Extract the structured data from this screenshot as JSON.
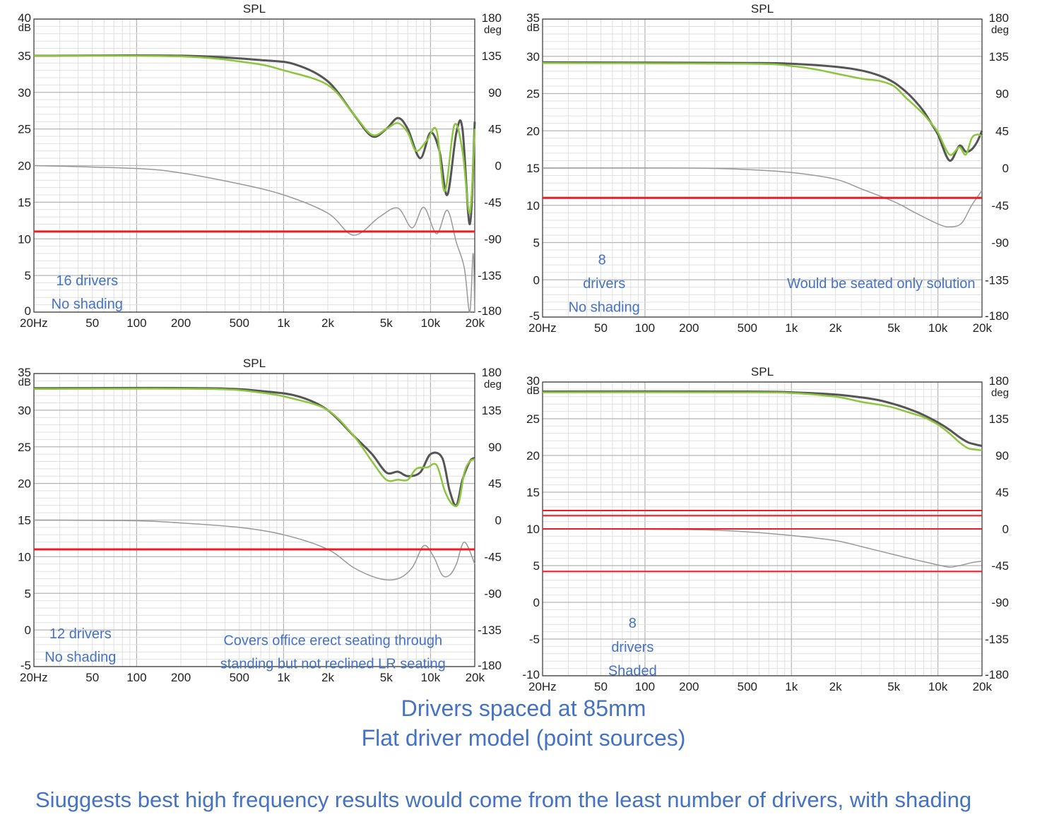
{
  "chart_data": [
    {
      "type": "line",
      "title": "SPL",
      "ylabel_left": "dB",
      "ylabel_right": "deg",
      "ylim": [
        0,
        40
      ],
      "y2lim": [
        -180,
        180
      ],
      "xlim": [
        20,
        20000
      ],
      "xscale": "log",
      "y_ticks": [
        "40",
        "35",
        "30",
        "25",
        "20",
        "15",
        "10",
        "5",
        "0"
      ],
      "y2_ticks": [
        "180",
        "135",
        "90",
        "45",
        "0",
        "-45",
        "-90",
        "-135",
        "-180"
      ],
      "x_ticks": [
        "20Hz",
        "50",
        "100",
        "200",
        "500",
        "1k",
        "2k",
        "5k",
        "10k",
        "20k"
      ],
      "series": [
        {
          "name": "spl_dark",
          "color": "#555555",
          "x": [
            20,
            200,
            700,
            1200,
            2000,
            3000,
            4000,
            5000,
            6000,
            7000,
            8500,
            10000,
            11500,
            13000,
            15000,
            16500,
            18500,
            20000
          ],
          "y": [
            35,
            35,
            34.4,
            33.8,
            31.5,
            27,
            24,
            25,
            26.5,
            25,
            21,
            24.5,
            22,
            16,
            24.5,
            25,
            12,
            26
          ]
        },
        {
          "name": "spl_green",
          "color": "#8cc63f",
          "x": [
            20,
            200,
            600,
            1000,
            2000,
            3000,
            4000,
            5000,
            6000,
            7000,
            8000,
            9500,
            11000,
            12500,
            14500,
            16500,
            18500,
            20000
          ],
          "y": [
            35,
            34.9,
            34,
            33,
            31,
            27,
            24.2,
            25,
            25.8,
            24.5,
            22,
            23.5,
            24.8,
            16.5,
            25.5,
            22,
            13.5,
            25
          ]
        },
        {
          "name": "phase_gray",
          "color": "#999999",
          "x": [
            20,
            100,
            200,
            500,
            1000,
            2000,
            3000,
            4500,
            6000,
            7500,
            9000,
            11000,
            13000,
            15000,
            17000,
            18500,
            19500,
            20000
          ],
          "y": [
            20,
            19.6,
            19,
            17.5,
            16,
            13.5,
            10.5,
            13,
            14.2,
            11.5,
            14.3,
            10.7,
            13.9,
            9.5,
            6,
            0,
            8,
            0
          ]
        },
        {
          "name": "red_level",
          "color": "#ee1c25",
          "x": [
            20,
            20000
          ],
          "y": [
            11,
            11
          ]
        }
      ],
      "annotations": [
        {
          "text": "16 drivers",
          "fx": 0.17,
          "fy": 0.85
        },
        {
          "text": "No shading",
          "fx": 0.17,
          "fy": 0.92
        }
      ]
    },
    {
      "type": "line",
      "title": "SPL",
      "ylabel_left": "dB",
      "ylabel_right": "deg",
      "ylim": [
        -5,
        35
      ],
      "y2lim": [
        -180,
        180
      ],
      "xlim": [
        20,
        20000
      ],
      "xscale": "log",
      "y_ticks": [
        "35",
        "30",
        "25",
        "20",
        "15",
        "10",
        "5",
        "0",
        "-5"
      ],
      "y2_ticks": [
        "180",
        "135",
        "90",
        "45",
        "0",
        "-45",
        "-90",
        "-135",
        "-180"
      ],
      "x_ticks": [
        "20Hz",
        "50",
        "100",
        "200",
        "500",
        "1k",
        "2k",
        "5k",
        "10k",
        "20k"
      ],
      "series": [
        {
          "name": "spl_dark",
          "color": "#555555",
          "x": [
            20,
            500,
            1000,
            2000,
            3000,
            4000,
            5000,
            6000,
            7000,
            8000,
            9000,
            10000,
            12000,
            14000,
            15500,
            17000,
            18500,
            20000
          ],
          "y": [
            29.2,
            29.1,
            29,
            28.6,
            28.1,
            27.4,
            26.5,
            25.3,
            24,
            22.6,
            21,
            19.5,
            16,
            18,
            17.2,
            17.5,
            18.5,
            20
          ]
        },
        {
          "name": "spl_green",
          "color": "#8cc63f",
          "x": [
            20,
            500,
            1000,
            1500,
            2000,
            3000,
            4000,
            5000,
            6000,
            7000,
            8000,
            9000,
            10000,
            12000,
            14000,
            15500,
            17000,
            18500,
            20000
          ],
          "y": [
            29.1,
            29,
            28.7,
            28.2,
            27.7,
            27,
            26.7,
            26,
            24.5,
            23.3,
            22.2,
            21,
            19.8,
            16.8,
            17.8,
            16.8,
            19,
            19.5,
            19.3
          ]
        },
        {
          "name": "phase_gray",
          "color": "#999999",
          "x": [
            20,
            200,
            500,
            1000,
            2000,
            3000,
            5000,
            7000,
            10000,
            12000,
            14500,
            17000,
            20000
          ],
          "y": [
            15,
            15,
            14.8,
            14.4,
            13.5,
            12.2,
            10.5,
            9,
            7.5,
            7.1,
            7.6,
            10,
            12
          ]
        },
        {
          "name": "red_level",
          "color": "#ee1c25",
          "x": [
            20,
            20000
          ],
          "y": [
            11,
            11
          ]
        }
      ],
      "annotations": [
        {
          "text": "8",
          "fx": 0.168,
          "fy": 0.78
        },
        {
          "text": "drivers",
          "fx": 0.172,
          "fy": 0.85
        },
        {
          "text": "No shading",
          "fx": 0.172,
          "fy": 0.92
        },
        {
          "text": "Would be seated only solution",
          "fx": 0.69,
          "fy": 0.85
        }
      ]
    },
    {
      "type": "line",
      "title": "SPL",
      "ylabel_left": "dB",
      "ylabel_right": "deg",
      "ylim": [
        -5,
        35
      ],
      "y2lim": [
        -180,
        180
      ],
      "xlim": [
        20,
        20000
      ],
      "xscale": "log",
      "y_ticks": [
        "35",
        "30",
        "25",
        "20",
        "15",
        "10",
        "5",
        "0",
        "-5"
      ],
      "y2_ticks": [
        "180",
        "135",
        "90",
        "45",
        "0",
        "-45",
        "-90",
        "-135",
        "-180"
      ],
      "x_ticks": [
        "20Hz",
        "50",
        "100",
        "200",
        "500",
        "1k",
        "2k",
        "5k",
        "10k",
        "20k"
      ],
      "series": [
        {
          "name": "spl_dark",
          "color": "#555555",
          "x": [
            20,
            300,
            800,
            1300,
            2000,
            3000,
            4000,
            5000,
            6000,
            7000,
            8500,
            10000,
            12000,
            13500,
            15000,
            16500,
            18500,
            20000
          ],
          "y": [
            33,
            33,
            32.5,
            31.8,
            30,
            26.5,
            24,
            21.5,
            21.6,
            21,
            21.5,
            24,
            23.5,
            19,
            17,
            20.5,
            23,
            23.5
          ]
        },
        {
          "name": "spl_green",
          "color": "#8cc63f",
          "x": [
            20,
            300,
            700,
            1200,
            2000,
            3000,
            4000,
            5000,
            6000,
            7000,
            8000,
            9500,
            11000,
            12500,
            14000,
            15500,
            17000,
            18500,
            20000
          ],
          "y": [
            32.9,
            32.9,
            32.4,
            31.5,
            30,
            26.5,
            23,
            20.5,
            20.5,
            20.5,
            22,
            22.2,
            22.5,
            19,
            17.2,
            17.3,
            21.5,
            23,
            23.3
          ]
        },
        {
          "name": "phase_gray",
          "color": "#999999",
          "x": [
            20,
            100,
            200,
            500,
            1000,
            2000,
            3000,
            4500,
            6000,
            7500,
            9000,
            10500,
            12000,
            13500,
            15000,
            17000,
            20000
          ],
          "y": [
            15,
            14.9,
            14.6,
            14,
            13,
            11,
            8.5,
            7,
            7,
            8.5,
            11.5,
            10,
            7.5,
            7.5,
            9,
            12,
            9
          ]
        },
        {
          "name": "red_level",
          "color": "#ee1c25",
          "x": [
            20,
            20000
          ],
          "y": [
            11,
            11
          ]
        }
      ],
      "annotations": [
        {
          "text": "12 drivers",
          "fx": 0.157,
          "fy": 0.85
        },
        {
          "text": "No shading",
          "fx": 0.157,
          "fy": 0.92
        },
        {
          "text": "Covers office erect seating through",
          "fx": 0.65,
          "fy": 0.87
        },
        {
          "text": "standing but not reclined LR seating",
          "fx": 0.65,
          "fy": 0.94
        }
      ]
    },
    {
      "type": "line",
      "title": "SPL",
      "ylabel_left": "dB",
      "ylabel_right": "deg",
      "ylim": [
        -10,
        30
      ],
      "y2lim": [
        -180,
        180
      ],
      "xlim": [
        20,
        20000
      ],
      "xscale": "log",
      "y_ticks": [
        "30",
        "25",
        "20",
        "15",
        "10",
        "5",
        "0",
        "-5",
        "-10"
      ],
      "y2_ticks": [
        "180",
        "135",
        "90",
        "45",
        "0",
        "-45",
        "-90",
        "-135",
        "-180"
      ],
      "x_ticks": [
        "20Hz",
        "50",
        "100",
        "200",
        "500",
        "1k",
        "2k",
        "5k",
        "10k",
        "20k"
      ],
      "series": [
        {
          "name": "spl_dark",
          "color": "#555555",
          "x": [
            20,
            500,
            1000,
            2000,
            3000,
            4000,
            5000,
            6000,
            7000,
            8000,
            10000,
            12000,
            14000,
            16000,
            18000,
            20000
          ],
          "y": [
            28.7,
            28.7,
            28.6,
            28.3,
            27.9,
            27.5,
            27,
            26.5,
            26,
            25.5,
            24.5,
            23.5,
            22.5,
            21.8,
            21.5,
            21.3
          ]
        },
        {
          "name": "spl_green",
          "color": "#8cc63f",
          "x": [
            20,
            500,
            1000,
            2000,
            3000,
            4000,
            5000,
            6000,
            7000,
            8000,
            10000,
            12000,
            14000,
            16000,
            18000,
            20000
          ],
          "y": [
            28.6,
            28.6,
            28.5,
            28,
            27.3,
            26.9,
            26.5,
            26,
            25.6,
            25.2,
            24.2,
            23,
            21.8,
            21,
            20.8,
            20.7
          ]
        },
        {
          "name": "phase_gray",
          "color": "#999999",
          "x": [
            20,
            200,
            500,
            1000,
            2000,
            3000,
            5000,
            7000,
            10000,
            12000,
            14000,
            17000,
            20000
          ],
          "y": [
            10,
            9.9,
            9.6,
            9.1,
            8.4,
            7.6,
            6.5,
            5.8,
            5.1,
            4.8,
            5,
            5.4,
            5.6
          ]
        },
        {
          "name": "red_upper_1",
          "color": "#ee1c25",
          "x": [
            20,
            20000
          ],
          "y": [
            12.5,
            12.5
          ]
        },
        {
          "name": "red_upper_2",
          "color": "#ee1c25",
          "x": [
            20,
            20000
          ],
          "y": [
            11.8,
            11.8
          ]
        },
        {
          "name": "red_mid",
          "color": "#ee1c25",
          "x": [
            20,
            20000
          ],
          "y": [
            10,
            10
          ]
        },
        {
          "name": "red_low",
          "color": "#ee1c25",
          "x": [
            20,
            20000
          ],
          "y": [
            4.2,
            4.2
          ]
        }
      ],
      "annotations": [
        {
          "text": "8",
          "fx": 0.225,
          "fy": 0.79
        },
        {
          "text": "drivers",
          "fx": 0.225,
          "fy": 0.86
        },
        {
          "text": "Shaded",
          "fx": 0.225,
          "fy": 0.93
        }
      ]
    }
  ],
  "captions": {
    "line1": "Drivers spaced at 85mm",
    "line2": "Flat driver model (point sources)",
    "line3": "Siuggests best high frequency results would come from the least number of drivers, with shading"
  },
  "colors": {
    "accent_text": "#4472c4",
    "grid_major": "#b4b4b4",
    "grid_minor": "#e0e0e0"
  }
}
